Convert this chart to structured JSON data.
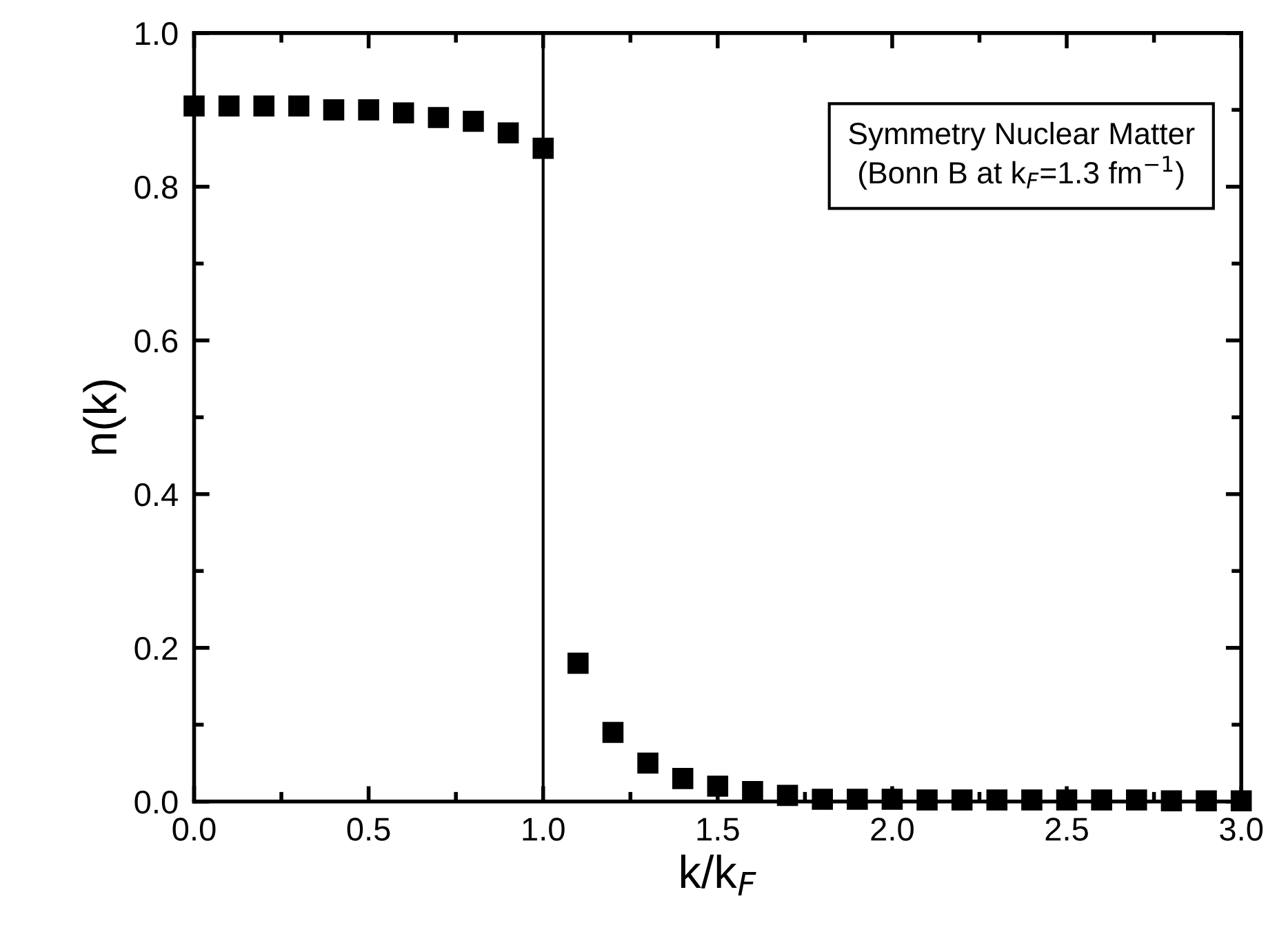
{
  "chart_data": {
    "type": "scatter",
    "xlabel": "k/k$_{F}$",
    "ylabel": "n(k)",
    "x": [
      0.0,
      0.1,
      0.2,
      0.3,
      0.4,
      0.5,
      0.6,
      0.7,
      0.8,
      0.9,
      1.0,
      1.1,
      1.2,
      1.3,
      1.4,
      1.5,
      1.6,
      1.7,
      1.8,
      1.9,
      2.0,
      2.1,
      2.2,
      2.3,
      2.4,
      2.5,
      2.6,
      2.7,
      2.8,
      2.9,
      3.0
    ],
    "series": [
      {
        "color": "#000000",
        "values": [
          0.905,
          0.905,
          0.905,
          0.905,
          0.9,
          0.9,
          0.896,
          0.89,
          0.885,
          0.87,
          0.85,
          0.18,
          0.09,
          0.05,
          0.03,
          0.02,
          0.013,
          0.008,
          0.003,
          0.003,
          0.003,
          0.002,
          0.002,
          0.002,
          0.002,
          0.002,
          0.002,
          0.002,
          0.001,
          0.001,
          0.001
        ]
      }
    ],
    "marker": "square",
    "xlim": [
      0,
      3
    ],
    "xticks": [
      {
        "value": 0,
        "label": "0.0"
      },
      0.5,
      {
        "value": 1,
        "label": "1.0"
      },
      1.5,
      {
        "value": 2,
        "label": "2.0"
      },
      2.5,
      {
        "value": 3,
        "label": "3.0"
      }
    ],
    "ylim": [
      0,
      1
    ],
    "yticks": [
      {
        "value": 0,
        "label": "0.0"
      },
      0.2,
      0.4,
      0.6,
      0.8,
      {
        "value": 1,
        "label": "1.0"
      }
    ],
    "ref_lines": [
      {
        "axis": "x",
        "value": 1,
        "color": "#000000"
      }
    ],
    "annotations": [
      "Symmetry Nuclear Matter\n(Bonn B at k$_{F}$=1.3 fm$^{−1}$)"
    ],
    "grid": false,
    "legend": false
  }
}
